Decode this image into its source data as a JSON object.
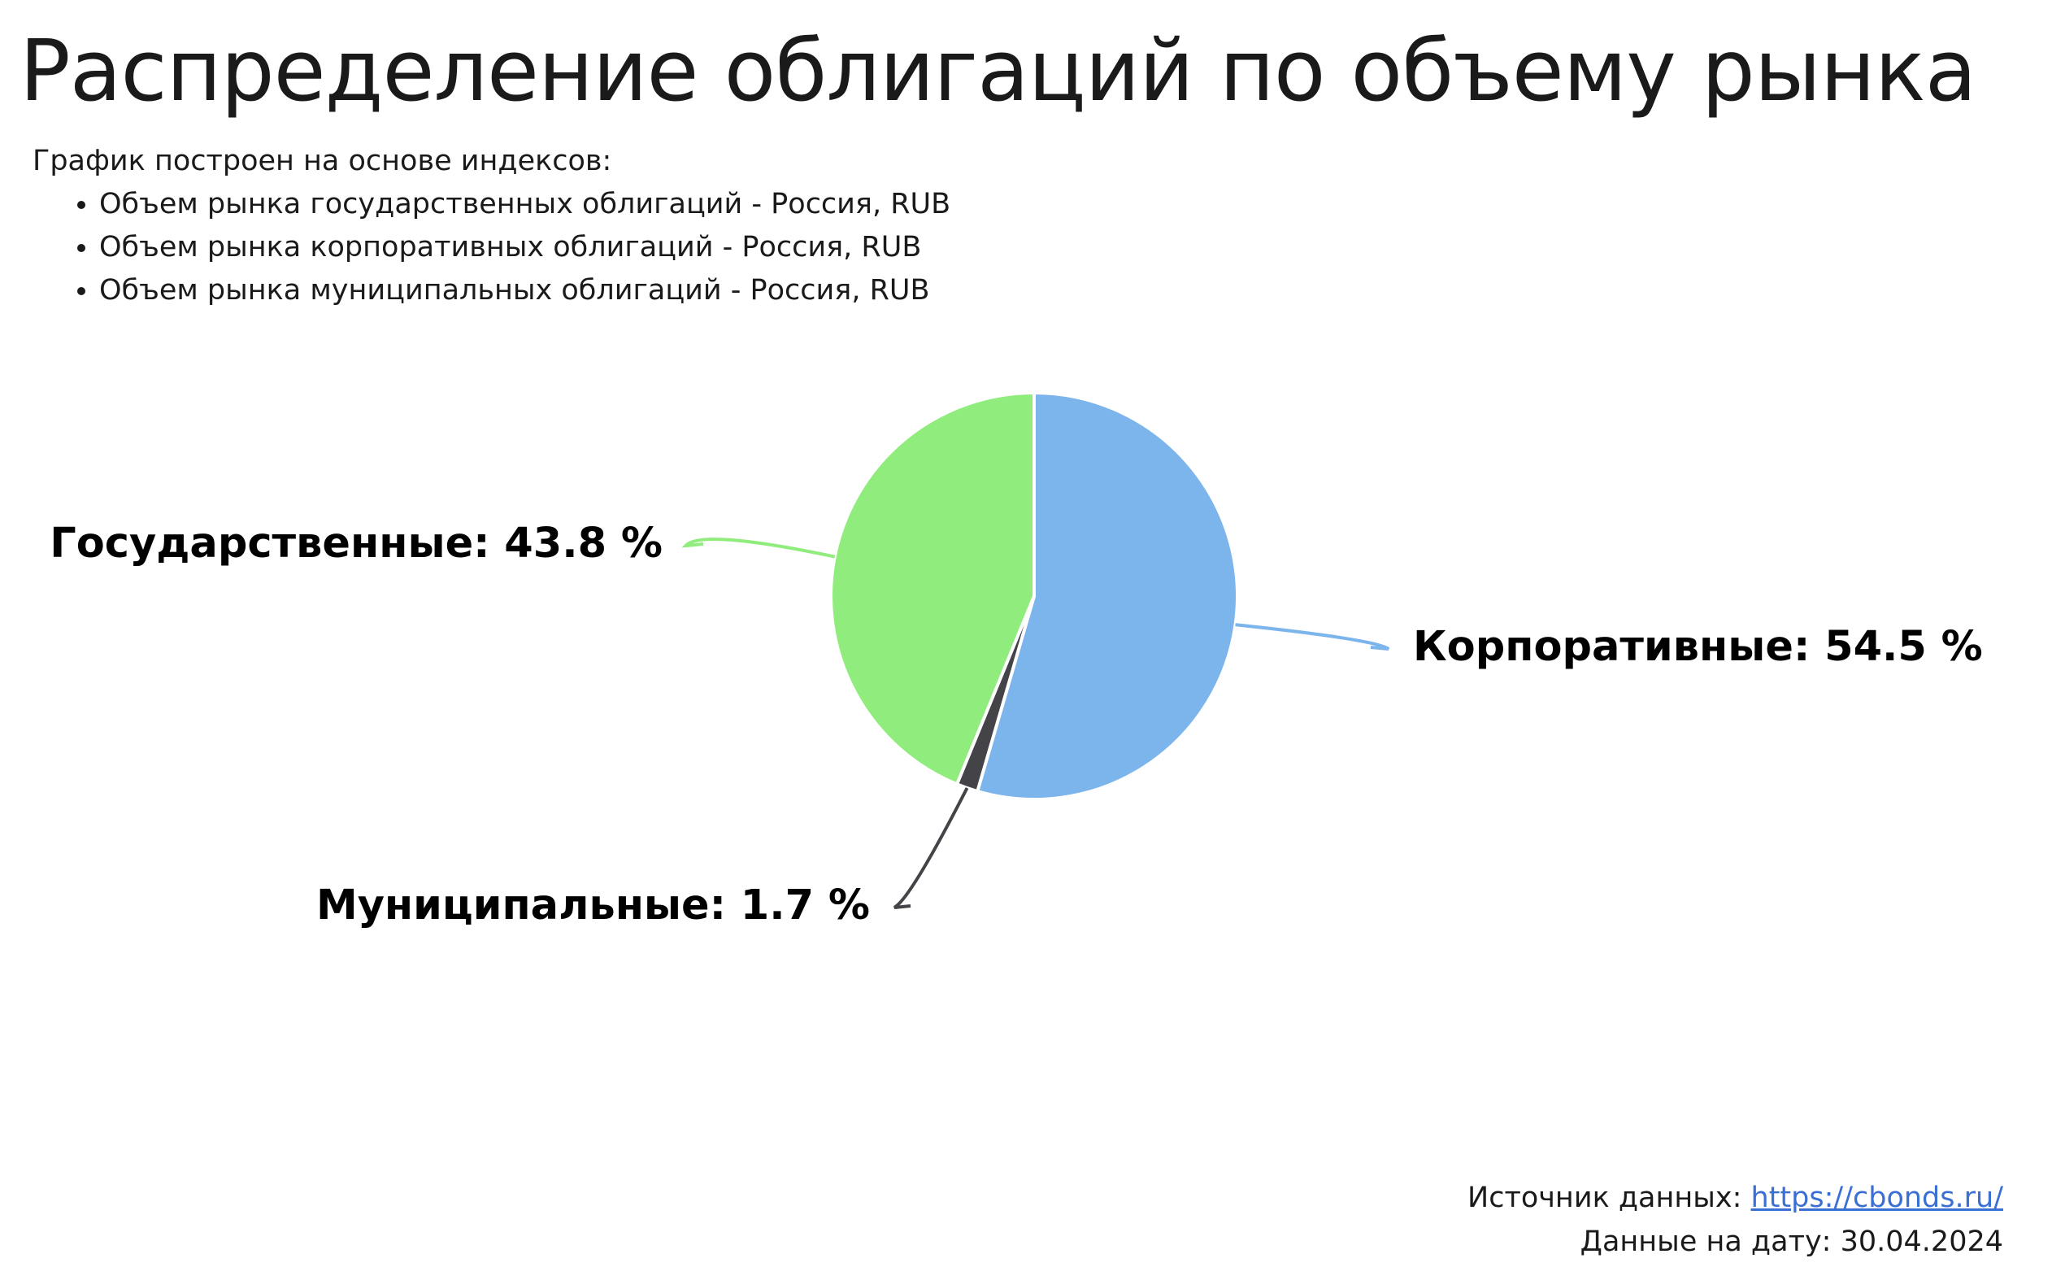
{
  "title": "Распределение облигаций по объему рынка",
  "subtitle": {
    "intro": "График построен на основе индексов:",
    "items": [
      "Объем рынка государственных облигаций - Россия, RUB",
      "Объем рынка корпоративных облигаций - Россия, RUB",
      "Объем рынка муниципальных облигаций - Россия, RUB"
    ]
  },
  "chart_data": {
    "type": "pie",
    "slices": [
      {
        "name": "Корпоративные",
        "value": 54.5,
        "label": "Корпоративные: 54.5 %",
        "color": "#7cb4ec"
      },
      {
        "name": "Муниципальные",
        "value": 1.7,
        "label": "Муниципальные: 1.7 %",
        "color": "#434348"
      },
      {
        "name": "Государственные",
        "value": 43.8,
        "label": "Государственные: 43.8 %",
        "color": "#90ed7d"
      }
    ],
    "unit": "%"
  },
  "footer": {
    "source_label": "Источник данных:",
    "source_link": "https://cbonds.ru/",
    "date_label": "Данные на дату: 30.04.2024"
  }
}
